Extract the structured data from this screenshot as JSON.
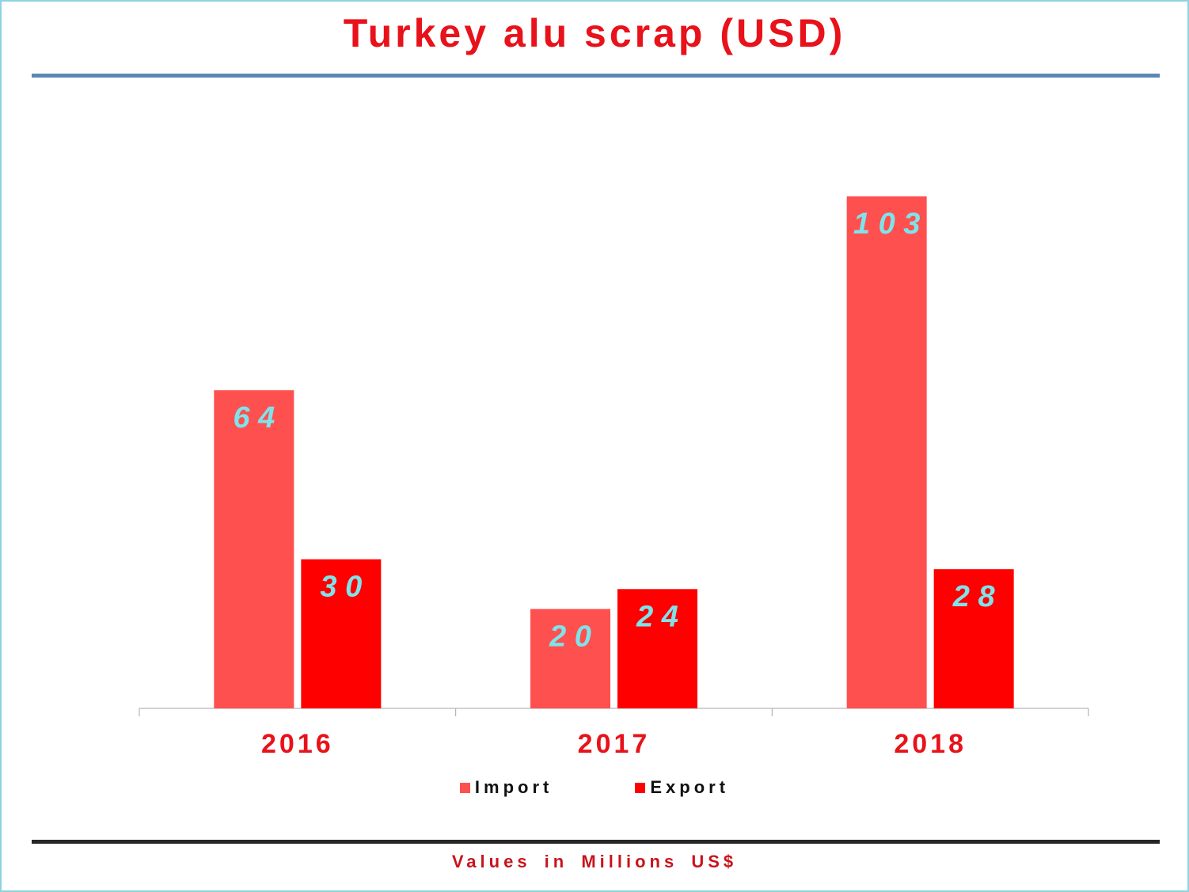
{
  "title": "Turkey alu scrap (USD)",
  "footnote": "Values in  Millions US$",
  "colors": {
    "import": "#ff5050",
    "export": "#ff0000",
    "label": "#7fe3ea",
    "category": "#e8121a",
    "title": "#e8121a",
    "footnote": "#c8141c",
    "rule_top": "#5b87b5",
    "rule_bottom": "#262626",
    "axis": "#a6a6a6",
    "frame": "#8fd3e0"
  },
  "legend": [
    {
      "name": "Import",
      "color": "#ff5050"
    },
    {
      "name": "Export",
      "color": "#ff0000"
    }
  ],
  "chart_data": {
    "type": "bar",
    "title": "Turkey alu scrap (USD)",
    "categories": [
      "2016",
      "2017",
      "2018"
    ],
    "series": [
      {
        "name": "Import",
        "values": [
          64,
          20,
          103
        ],
        "labels": [
          "6 4",
          "2 0",
          "1 0 3"
        ]
      },
      {
        "name": "Export",
        "values": [
          30,
          24,
          28
        ],
        "labels": [
          "3 0",
          "2 4",
          "2 8"
        ]
      }
    ],
    "xlabel": "",
    "ylabel": "",
    "ylim": [
      0,
      120
    ],
    "grid": false,
    "legend_position": "bottom"
  }
}
